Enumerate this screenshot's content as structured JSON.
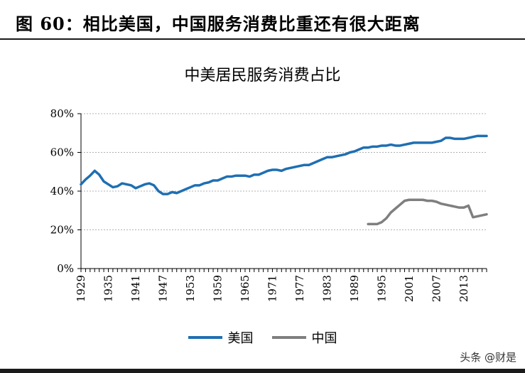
{
  "header": {
    "figure_title": "图 60：相比美国，中国服务消费比重还有很大距离"
  },
  "watermark": "头条 @财是",
  "chart_data": {
    "type": "line",
    "title": "中美居民服务消费占比",
    "xlabel": "",
    "ylabel": "",
    "xlim": [
      1929,
      2018
    ],
    "ylim": [
      0,
      80
    ],
    "x_ticks": [
      "1929",
      "1935",
      "1941",
      "1947",
      "1953",
      "1959",
      "1965",
      "1971",
      "1977",
      "1983",
      "1989",
      "1995",
      "2001",
      "2007",
      "2013"
    ],
    "y_ticks": [
      0,
      20,
      40,
      60,
      80
    ],
    "y_tick_labels": [
      "0%",
      "20%",
      "40%",
      "60%",
      "80%"
    ],
    "y_unit": "%",
    "grid": "horizontal-dotted",
    "legend": "bottom-center",
    "series": [
      {
        "name": "美国",
        "color": "#1f6fb2",
        "x": [
          1929,
          1930,
          1931,
          1932,
          1933,
          1934,
          1935,
          1936,
          1937,
          1938,
          1939,
          1940,
          1941,
          1942,
          1943,
          1944,
          1945,
          1946,
          1947,
          1948,
          1949,
          1950,
          1951,
          1952,
          1953,
          1954,
          1955,
          1956,
          1957,
          1958,
          1959,
          1960,
          1961,
          1962,
          1963,
          1964,
          1965,
          1966,
          1967,
          1968,
          1969,
          1970,
          1971,
          1972,
          1973,
          1974,
          1975,
          1976,
          1977,
          1978,
          1979,
          1980,
          1981,
          1982,
          1983,
          1984,
          1985,
          1986,
          1987,
          1988,
          1989,
          1990,
          1991,
          1992,
          1993,
          1994,
          1995,
          1996,
          1997,
          1998,
          1999,
          2000,
          2001,
          2002,
          2003,
          2004,
          2005,
          2006,
          2007,
          2008,
          2009,
          2010,
          2011,
          2012,
          2013,
          2014,
          2015,
          2016,
          2017,
          2018
        ],
        "values": [
          43.5,
          46,
          48,
          50.5,
          48.5,
          45,
          43.5,
          42,
          42.5,
          44,
          43.5,
          43,
          41.5,
          42.5,
          43.5,
          44,
          43,
          40,
          38.5,
          38.5,
          39.5,
          39,
          40,
          41,
          42,
          43,
          43,
          44,
          44.5,
          45.5,
          45.5,
          46.5,
          47.5,
          47.5,
          48,
          48,
          48,
          47.5,
          48.5,
          48.5,
          49.5,
          50.5,
          51,
          51,
          50.5,
          51.5,
          52,
          52.5,
          53,
          53.5,
          53.5,
          54.5,
          55.5,
          56.5,
          57.5,
          57.5,
          58,
          58.5,
          59,
          60,
          60.5,
          61.5,
          62.5,
          62.5,
          63,
          63,
          63.5,
          63.5,
          64,
          63.5,
          63.5,
          64,
          64.5,
          65,
          65,
          65,
          65,
          65,
          65.5,
          66,
          67.5,
          67.5,
          67,
          67,
          67,
          67.5,
          68,
          68.5,
          68.5,
          68.5
        ]
      },
      {
        "name": "中国",
        "color": "#7f7f7f",
        "x": [
          1992,
          1993,
          1994,
          1995,
          1996,
          1997,
          1998,
          1999,
          2000,
          2001,
          2002,
          2003,
          2004,
          2005,
          2006,
          2007,
          2008,
          2009,
          2010,
          2011,
          2012,
          2013,
          2014,
          2015,
          2016,
          2017,
          2018
        ],
        "values": [
          23,
          23,
          23,
          24,
          26,
          29,
          31,
          33,
          35,
          35.5,
          35.5,
          35.5,
          35.5,
          35,
          35,
          34.5,
          33.5,
          33,
          32.5,
          32,
          31.5,
          31.5,
          32.5,
          26.5,
          27,
          27.5,
          28
        ]
      }
    ]
  }
}
